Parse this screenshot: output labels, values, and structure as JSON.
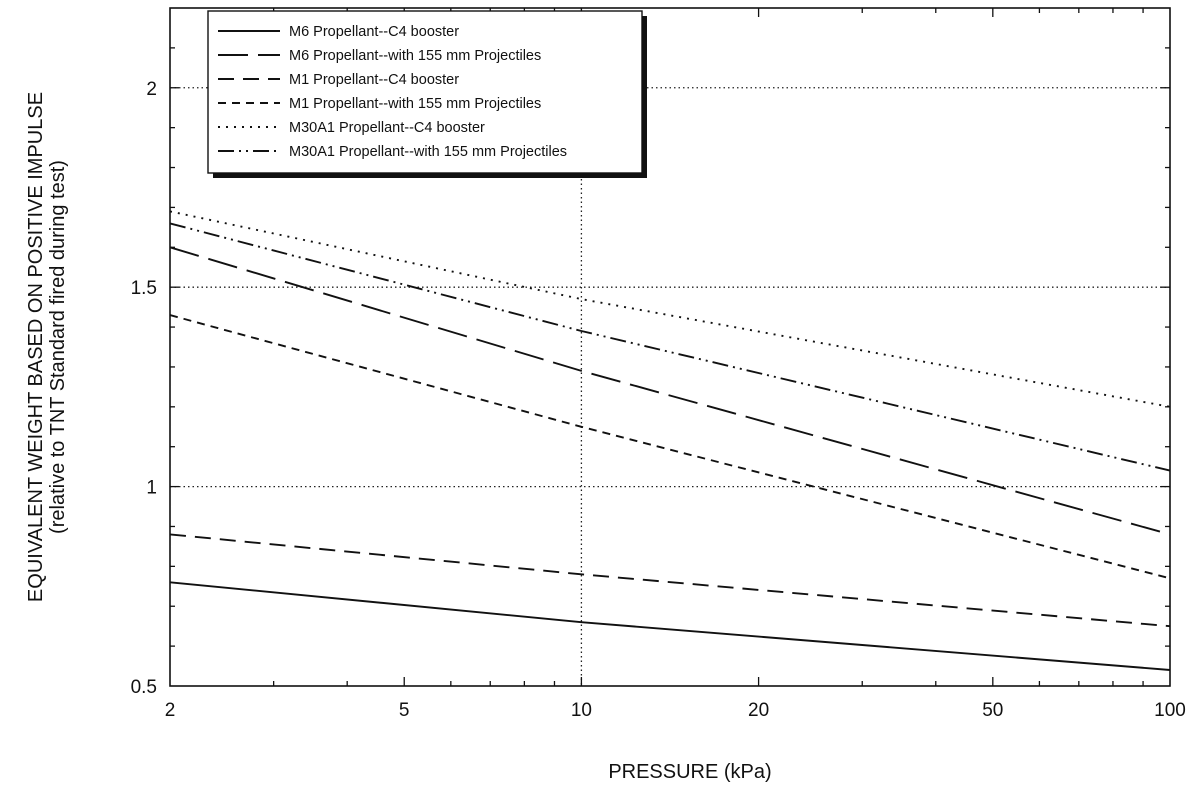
{
  "chart_data": {
    "type": "line",
    "title": "",
    "xlabel": "PRESSURE (kPa)",
    "ylabel": "EQUIVALENT WEIGHT BASED ON POSITIVE IMPULSE",
    "ylabel2": "(relative to TNT Standard fired during test)",
    "xscale": "log",
    "xlim": [
      2,
      100
    ],
    "ylim": [
      0.5,
      2.2
    ],
    "xticks": [
      2,
      5,
      10,
      20,
      50,
      100
    ],
    "xtick_labels": [
      "2",
      "5",
      "10",
      "20",
      "50",
      "100"
    ],
    "yticks": [
      0.5,
      1,
      1.5,
      2
    ],
    "ytick_labels": [
      "0.5",
      "1",
      "1.5",
      "2"
    ],
    "grid": "dotted lines at y = 1, 1.5, 2 and x = 10",
    "legend_position": "top-left",
    "series": [
      {
        "name": "M6 Propellant--C4 booster",
        "style": "solid",
        "x": [
          2,
          10,
          100
        ],
        "y": [
          0.76,
          0.66,
          0.54
        ]
      },
      {
        "name": "M6 Propellant--with 155 mm Projectiles",
        "style": "long-dash",
        "x": [
          2,
          10,
          100
        ],
        "y": [
          1.6,
          1.29,
          0.88
        ]
      },
      {
        "name": "M1 Propellant--C4 booster",
        "style": "medium-dash",
        "x": [
          2,
          10,
          100
        ],
        "y": [
          0.88,
          0.78,
          0.65
        ]
      },
      {
        "name": "M1 Propellant--with 155 mm Projectiles",
        "style": "short-dash",
        "x": [
          2,
          10,
          100
        ],
        "y": [
          1.43,
          1.15,
          0.77
        ]
      },
      {
        "name": "M30A1  Propellant--C4 booster",
        "style": "dotted",
        "x": [
          2,
          10,
          100
        ],
        "y": [
          1.69,
          1.47,
          1.2
        ]
      },
      {
        "name": "M30A1 Propellant--with 155 mm Projectiles",
        "style": "dash-dot-dot",
        "x": [
          2,
          10,
          100
        ],
        "y": [
          1.66,
          1.39,
          1.04
        ]
      }
    ]
  }
}
